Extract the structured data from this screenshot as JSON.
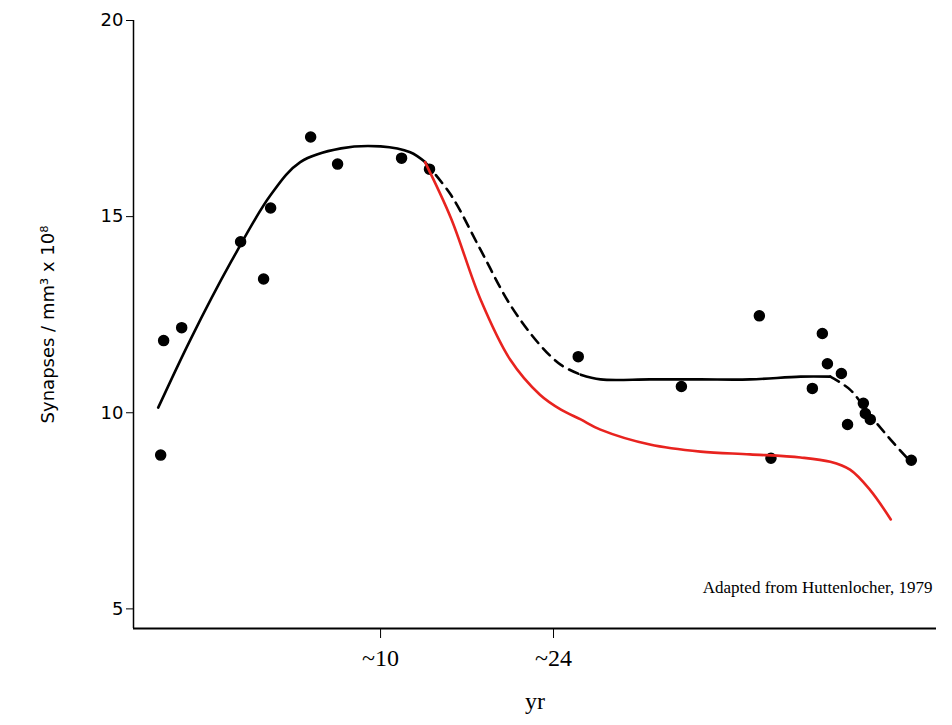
{
  "chart_data": {
    "type": "line",
    "x_label": "yr",
    "y_label": "Synapses / mm³ x 10⁸",
    "xlim": [
      -10,
      55
    ],
    "xticks": [
      {
        "value": 10,
        "label": "~10"
      },
      {
        "value": 24,
        "label": "~24"
      }
    ],
    "ylim": [
      4.5,
      20
    ],
    "yticks": [
      5,
      10,
      15,
      20
    ],
    "grid": false,
    "annotations": [
      {
        "text": "Adapted from Huttenlocher, 1979"
      }
    ],
    "series": [
      {
        "type": "scatter",
        "color": "#000000",
        "marker": "circle",
        "x": [
          -7.8,
          -7.56,
          -6.1,
          -1.33,
          0.53,
          1.1,
          4.34,
          6.52,
          11.7,
          13.96,
          26.0,
          34.35,
          40.66,
          41.6,
          44.95,
          45.76,
          46.17,
          47.3,
          47.8,
          49.08,
          49.24,
          49.64,
          52.96
        ],
        "values": [
          8.92,
          11.84,
          12.17,
          14.36,
          13.41,
          15.22,
          17.03,
          16.34,
          16.49,
          16.21,
          11.43,
          10.67,
          12.47,
          8.84,
          10.62,
          12.02,
          11.25,
          11.0,
          9.7,
          10.24,
          9.98,
          9.83,
          8.79
        ]
      },
      {
        "type": "line",
        "color": "#000000",
        "line_style": "solid",
        "x": [
          -8,
          -5.4,
          -2.1,
          1.1,
          3.5,
          6.8,
          10,
          12.4,
          13.6,
          15.7,
          18.1,
          20.5,
          22.9,
          24.6,
          26.2,
          27.8,
          31.8,
          35.9,
          39.9,
          44,
          46.4,
          48,
          49.6,
          51.3,
          52.9
        ],
        "values": [
          10.13,
          11.86,
          13.85,
          15.55,
          16.39,
          16.74,
          16.79,
          16.64,
          16.39,
          null,
          null,
          null,
          null,
          null,
          10.97,
          10.85,
          10.85,
          10.85,
          10.85,
          10.92,
          10.92,
          null,
          null,
          null,
          null
        ]
      },
      {
        "type": "line",
        "color": "#000000",
        "line_style": "dashed",
        "x": [
          -8,
          -5.4,
          -2.1,
          1.1,
          3.5,
          6.8,
          10,
          12.4,
          13.6,
          15.7,
          18.1,
          20.5,
          22.9,
          24.6,
          26.2,
          27.8,
          31.8,
          35.9,
          39.9,
          44,
          46.4,
          48,
          49.6,
          51.3,
          52.9
        ],
        "values": [
          null,
          null,
          null,
          null,
          null,
          null,
          null,
          null,
          16.39,
          15.55,
          14.15,
          12.75,
          11.73,
          11.22,
          10.97,
          null,
          null,
          null,
          null,
          null,
          10.92,
          10.59,
          9.95,
          9.31,
          8.75
        ]
      },
      {
        "type": "line",
        "color": "#e8231f",
        "line_style": "solid",
        "x": [
          -8,
          -5.4,
          -2.1,
          1.1,
          3.5,
          6.8,
          10,
          12.4,
          13.6,
          15.7,
          18.1,
          20.5,
          22.9,
          24.6,
          26.2,
          27.8,
          31.8,
          35.9,
          39.9,
          44,
          46.4,
          48,
          49.6,
          51.3,
          52.9
        ],
        "values": [
          null,
          null,
          null,
          null,
          null,
          null,
          null,
          null,
          16.39,
          14.96,
          12.88,
          11.35,
          10.46,
          10.08,
          9.83,
          9.57,
          9.19,
          9.01,
          8.94,
          8.86,
          8.75,
          8.55,
          8.04,
          7.28,
          null
        ]
      }
    ]
  }
}
